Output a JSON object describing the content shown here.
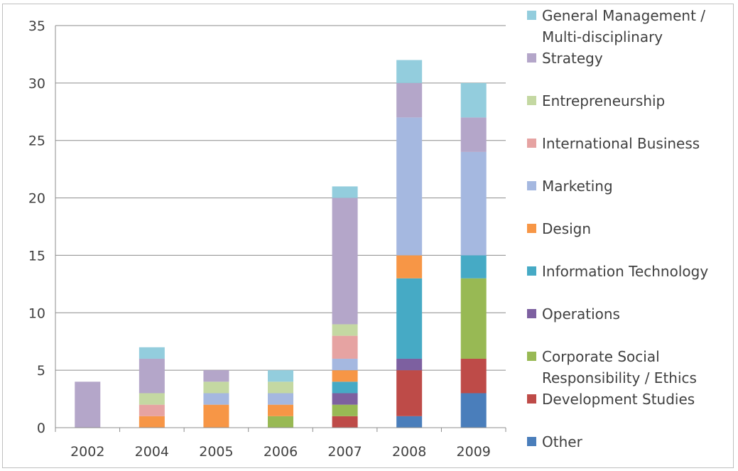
{
  "chart_data": {
    "type": "bar",
    "stacked": true,
    "title": "",
    "xlabel": "",
    "ylabel": "",
    "ylim": [
      0,
      35
    ],
    "yticks": [
      0,
      5,
      10,
      15,
      20,
      25,
      30,
      35
    ],
    "grid": true,
    "legend_position": "right",
    "categories": [
      "2002",
      "2004",
      "2005",
      "2006",
      "2007",
      "2008",
      "2009"
    ],
    "series": [
      {
        "name": "Other",
        "color": "#4a7ebb",
        "values": [
          0,
          0,
          0,
          0,
          0,
          1,
          3
        ]
      },
      {
        "name": "Development Studies",
        "color": "#be4b48",
        "values": [
          0,
          0,
          0,
          0,
          1,
          4,
          3
        ]
      },
      {
        "name": "Corporate Social Responsibility / Ethics",
        "color": "#98b954",
        "values": [
          0,
          0,
          0,
          1,
          1,
          0,
          7
        ]
      },
      {
        "name": "Operations",
        "color": "#7d60a0",
        "values": [
          0,
          0,
          0,
          0,
          1,
          1,
          0
        ]
      },
      {
        "name": "Information Technology",
        "color": "#46aac5",
        "values": [
          0,
          0,
          0,
          0,
          1,
          7,
          2
        ]
      },
      {
        "name": "Design",
        "color": "#f79646",
        "values": [
          0,
          1,
          2,
          1,
          1,
          2,
          0
        ]
      },
      {
        "name": "Marketing",
        "color": "#a5b8e0",
        "values": [
          0,
          0,
          1,
          1,
          1,
          12,
          9
        ]
      },
      {
        "name": "International Business",
        "color": "#e6a3a2",
        "values": [
          0,
          1,
          0,
          0,
          2,
          0,
          0
        ]
      },
      {
        "name": "Entrepreneurship",
        "color": "#c4d8a2",
        "values": [
          0,
          1,
          1,
          1,
          1,
          0,
          0
        ]
      },
      {
        "name": "Strategy",
        "color": "#b4a6c9",
        "values": [
          4,
          3,
          1,
          0,
          11,
          3,
          3
        ]
      },
      {
        "name": "General Management / Multi-disciplinary",
        "color": "#93cddd",
        "values": [
          0,
          1,
          0,
          1,
          1,
          2,
          3
        ]
      }
    ],
    "legend": [
      {
        "lines": [
          "General Management /",
          "Multi-disciplinary"
        ],
        "color": "#93cddd"
      },
      {
        "lines": [
          "Strategy"
        ],
        "color": "#b4a6c9"
      },
      {
        "lines": [
          "Entrepreneurship"
        ],
        "color": "#c4d8a2"
      },
      {
        "lines": [
          "International Business"
        ],
        "color": "#e6a3a2"
      },
      {
        "lines": [
          "Marketing"
        ],
        "color": "#a5b8e0"
      },
      {
        "lines": [
          "Design"
        ],
        "color": "#f79646"
      },
      {
        "lines": [
          "Information Technology"
        ],
        "color": "#46aac5"
      },
      {
        "lines": [
          "Operations"
        ],
        "color": "#7d60a0"
      },
      {
        "lines": [
          "Corporate Social",
          "Responsibility / Ethics"
        ],
        "color": "#98b954"
      },
      {
        "lines": [
          "Development Studies"
        ],
        "color": "#be4b48"
      },
      {
        "lines": [
          "Other"
        ],
        "color": "#4a7ebb"
      }
    ]
  }
}
